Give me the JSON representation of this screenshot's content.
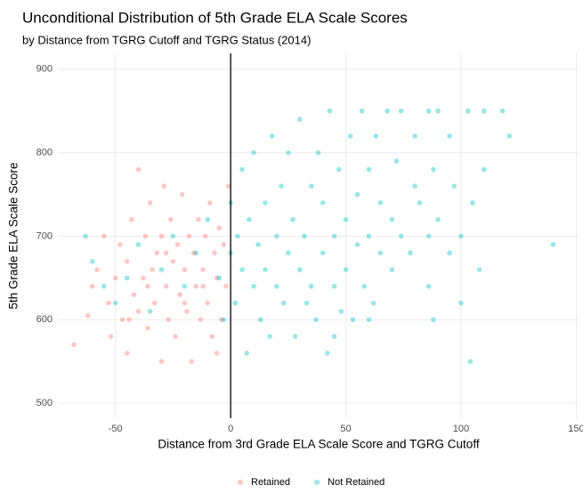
{
  "chart_data": {
    "type": "scatter",
    "title": "Unconditional Distribution of 5th Grade ELA Scale Scores",
    "subtitle": "by Distance from TGRG Cutoff and TGRG Status (2014)",
    "xlabel": "Distance from 3rd Grade ELA Scale Score and TGRG Cutoff",
    "ylabel": "5th Grade ELA Scale Score",
    "xlim": [
      -75,
      151
    ],
    "ylim": [
      482,
      919
    ],
    "xticks": [
      -50,
      0,
      50,
      100,
      150
    ],
    "yticks": [
      500,
      600,
      700,
      800,
      900
    ],
    "grid": true,
    "vline": 0,
    "legend": "bottom",
    "series": [
      {
        "name": "Retained",
        "color": "#F8766D",
        "x": [
          -68,
          -62,
          -60,
          -58,
          -55,
          -53,
          -52,
          -50,
          -48,
          -47,
          -45,
          -45,
          -43,
          -42,
          -40,
          -40,
          -38,
          -37,
          -36,
          -35,
          -34,
          -33,
          -32,
          -30,
          -30,
          -29,
          -28,
          -27,
          -26,
          -25,
          -24,
          -23,
          -22,
          -21,
          -20,
          -19,
          -18,
          -17,
          -16,
          -15,
          -14,
          -13,
          -12,
          -11,
          -10,
          -9,
          -8,
          -7,
          -6,
          -5,
          -4,
          -3,
          -2,
          -1,
          -44,
          -36,
          -28,
          -20,
          -12,
          -6
        ],
        "y": [
          570,
          605,
          640,
          660,
          700,
          620,
          580,
          650,
          690,
          600,
          560,
          670,
          720,
          630,
          780,
          610,
          650,
          700,
          590,
          740,
          660,
          620,
          680,
          550,
          700,
          760,
          640,
          600,
          720,
          670,
          580,
          690,
          630,
          750,
          660,
          610,
          700,
          550,
          680,
          640,
          720,
          600,
          660,
          700,
          620,
          740,
          580,
          680,
          650,
          710,
          600,
          690,
          640,
          760,
          600,
          640,
          680,
          620,
          640,
          560
        ]
      },
      {
        "name": "Not Retained",
        "color": "#00BFC4",
        "x": [
          -63,
          -60,
          -55,
          -50,
          -45,
          -40,
          -35,
          -30,
          -25,
          -20,
          -15,
          -10,
          -5,
          -3,
          0,
          0,
          2,
          3,
          5,
          5,
          7,
          8,
          10,
          10,
          12,
          13,
          15,
          15,
          17,
          18,
          20,
          20,
          22,
          23,
          25,
          25,
          27,
          28,
          30,
          30,
          32,
          33,
          35,
          35,
          37,
          38,
          40,
          40,
          42,
          43,
          45,
          45,
          47,
          48,
          50,
          50,
          52,
          53,
          55,
          55,
          57,
          58,
          60,
          60,
          62,
          63,
          65,
          65,
          68,
          70,
          70,
          72,
          74,
          74,
          78,
          80,
          82,
          86,
          86,
          86,
          88,
          88,
          90,
          90,
          95,
          95,
          97,
          100,
          100,
          103,
          105,
          108,
          110,
          110,
          104,
          118,
          121,
          140,
          80,
          60,
          45
        ],
        "y": [
          700,
          670,
          640,
          620,
          650,
          690,
          610,
          660,
          700,
          640,
          680,
          720,
          650,
          600,
          680,
          740,
          620,
          700,
          660,
          780,
          560,
          720,
          640,
          800,
          690,
          600,
          740,
          660,
          580,
          820,
          700,
          640,
          760,
          620,
          680,
          800,
          720,
          580,
          660,
          840,
          700,
          620,
          760,
          640,
          600,
          800,
          680,
          740,
          560,
          850,
          700,
          640,
          780,
          610,
          720,
          660,
          820,
          600,
          690,
          750,
          850,
          640,
          700,
          780,
          620,
          820,
          680,
          740,
          850,
          660,
          720,
          790,
          700,
          850,
          680,
          760,
          740,
          640,
          700,
          850,
          600,
          780,
          720,
          850,
          680,
          820,
          760,
          620,
          700,
          850,
          740,
          660,
          780,
          850,
          550,
          850,
          820,
          690,
          820,
          600,
          580
        ]
      }
    ]
  }
}
